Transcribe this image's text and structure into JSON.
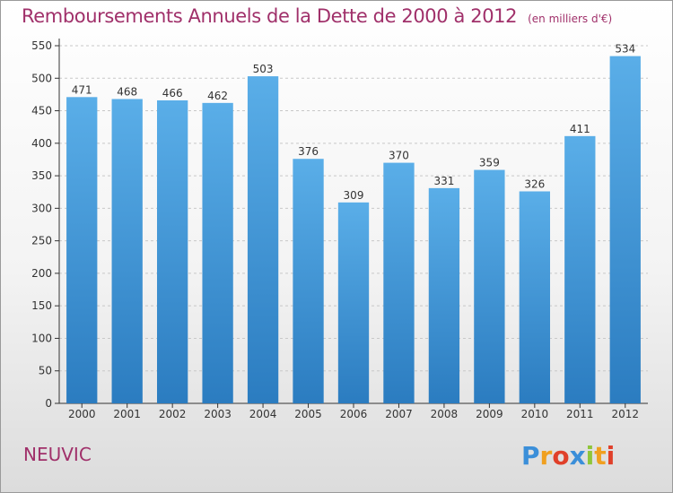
{
  "chart_data": {
    "type": "bar",
    "title": "Remboursements Annuels de la Dette de 2000 à 2012",
    "subtitle": "(en milliers d'€)",
    "categories": [
      "2000",
      "2001",
      "2002",
      "2003",
      "2004",
      "2005",
      "2006",
      "2007",
      "2008",
      "2009",
      "2010",
      "2011",
      "2012"
    ],
    "values": [
      471,
      468,
      466,
      462,
      503,
      376,
      309,
      370,
      331,
      359,
      326,
      411,
      534
    ],
    "ylim": [
      0,
      550
    ],
    "yticks": [
      0,
      50,
      100,
      150,
      200,
      250,
      300,
      350,
      400,
      450,
      500,
      550
    ],
    "grid": true,
    "bar_color_top": "#5aaee8",
    "bar_color_bottom": "#2b7cc0",
    "xlabel": "",
    "ylabel": ""
  },
  "footer": {
    "commune": "NEUVIC",
    "logo": "Proxiti"
  },
  "colors": {
    "title": "#a0306a",
    "axis": "#333333",
    "grid": "#c8c8c8"
  }
}
